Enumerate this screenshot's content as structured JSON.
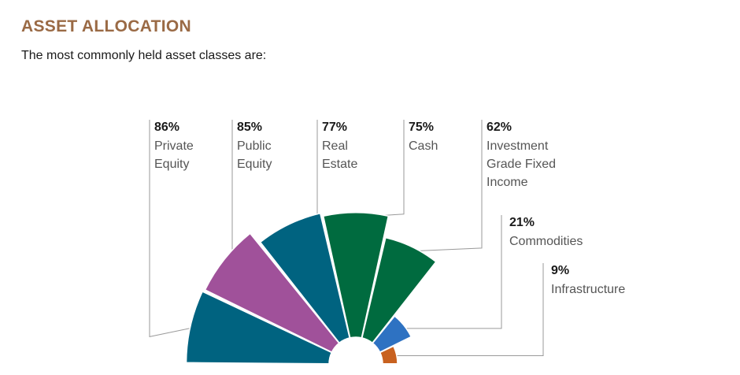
{
  "header": {
    "title": "ASSET ALLOCATION",
    "subtitle": "The most commonly held asset classes are:"
  },
  "chart_data": {
    "type": "polar-area",
    "unit": "%",
    "series": [
      {
        "category": "Private Equity",
        "label_lines": [
          "Private",
          "Equity"
        ],
        "value": 86,
        "value_label": "86%",
        "color": "#006380"
      },
      {
        "category": "Public Equity",
        "label_lines": [
          "Public",
          "Equity"
        ],
        "value": 85,
        "value_label": "85%",
        "color": "#a0519a"
      },
      {
        "category": "Real Estate",
        "label_lines": [
          "Real",
          "Estate"
        ],
        "value": 77,
        "value_label": "77%",
        "color": "#006380"
      },
      {
        "category": "Cash",
        "label_lines": [
          "Cash"
        ],
        "value": 75,
        "value_label": "75%",
        "color": "#006b3f"
      },
      {
        "category": "Investment Grade Fixed Income",
        "label_lines": [
          "Investment",
          "Grade Fixed",
          "Income"
        ],
        "value": 62,
        "value_label": "62%",
        "color": "#006b3f"
      },
      {
        "category": "Commodities",
        "label_lines": [
          "Commodities"
        ],
        "value": 21,
        "value_label": "21%",
        "color": "#2e72c2"
      },
      {
        "category": "Infrastructure",
        "label_lines": [
          "Infrastructure"
        ],
        "value": 9,
        "value_label": "9%",
        "color": "#c8611f"
      }
    ]
  }
}
